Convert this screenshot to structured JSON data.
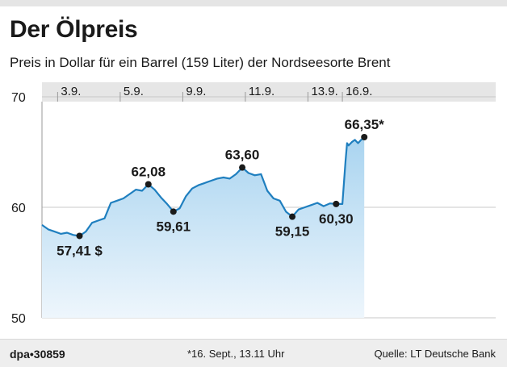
{
  "header": {
    "title": "Der Ölpreis",
    "subtitle": "Preis in Dollar für ein Barrel (159 Liter) der Nordseesorte Brent"
  },
  "footer": {
    "credit": "dpa•30859",
    "note": "*16. Sept., 13.11 Uhr",
    "source": "Quelle: LT Deutsche Bank"
  },
  "colors": {
    "line": "#1f7fbf",
    "area_top": "#a9d4f0",
    "area_bottom": "#eef6fc",
    "date_band": "#e6e6e6",
    "text": "#1a1a1a"
  },
  "chart_data": {
    "type": "area",
    "title": "Der Ölpreis",
    "ylabel": "",
    "ylim": [
      50,
      70
    ],
    "yticks": [
      50,
      60,
      70
    ],
    "xlim": [
      0,
      14.5
    ],
    "xticks": [
      {
        "x": 0.5,
        "label": "3.9."
      },
      {
        "x": 2.5,
        "label": "5.9."
      },
      {
        "x": 4.5,
        "label": "9.9."
      },
      {
        "x": 6.5,
        "label": "11.9."
      },
      {
        "x": 8.5,
        "label": "13.9."
      },
      {
        "x": 9.6,
        "label": "16.9."
      }
    ],
    "grid": true,
    "legend": "none",
    "series": [
      {
        "x": [
          0.0,
          0.2,
          0.4,
          0.6,
          0.8,
          1.0,
          1.2,
          1.4,
          1.6,
          1.8,
          2.0,
          2.2,
          2.4,
          2.6,
          2.8,
          3.0,
          3.2,
          3.4,
          3.6,
          3.8,
          4.0,
          4.2,
          4.4,
          4.6,
          4.8,
          5.0,
          5.2,
          5.4,
          5.6,
          5.8,
          6.0,
          6.2,
          6.4,
          6.6,
          6.8,
          7.0,
          7.2,
          7.4,
          7.6,
          7.8,
          8.0,
          8.2,
          8.4,
          8.6,
          8.8,
          9.0,
          9.2,
          9.4,
          9.6,
          9.7,
          9.75,
          9.8,
          9.9,
          10.0,
          10.1,
          10.2,
          10.3
        ],
        "values": [
          58.4,
          58.0,
          57.8,
          57.6,
          57.7,
          57.5,
          57.41,
          57.8,
          58.6,
          58.8,
          59.0,
          60.4,
          60.6,
          60.8,
          61.2,
          61.6,
          61.5,
          62.08,
          61.6,
          60.9,
          60.3,
          59.61,
          59.9,
          61.0,
          61.7,
          62.0,
          62.2,
          62.4,
          62.6,
          62.7,
          62.6,
          63.0,
          63.6,
          63.1,
          62.9,
          63.0,
          61.5,
          60.8,
          60.6,
          59.6,
          59.15,
          59.8,
          60.0,
          60.2,
          60.4,
          60.1,
          60.35,
          60.3,
          60.3,
          64.2,
          65.8,
          65.6,
          65.9,
          66.1,
          65.8,
          66.1,
          66.35
        ]
      }
    ],
    "annotations": [
      {
        "x": 1.2,
        "y": 57.41,
        "label": "57,41 $",
        "pos": "below"
      },
      {
        "x": 3.4,
        "y": 62.08,
        "label": "62,08",
        "pos": "above"
      },
      {
        "x": 4.2,
        "y": 59.61,
        "label": "59,61",
        "pos": "below"
      },
      {
        "x": 6.4,
        "y": 63.6,
        "label": "63,60",
        "pos": "above"
      },
      {
        "x": 8.0,
        "y": 59.15,
        "label": "59,15",
        "pos": "below"
      },
      {
        "x": 9.4,
        "y": 60.3,
        "label": "60,30",
        "pos": "below"
      },
      {
        "x": 10.3,
        "y": 66.35,
        "label": "66,35*",
        "pos": "above"
      }
    ]
  }
}
